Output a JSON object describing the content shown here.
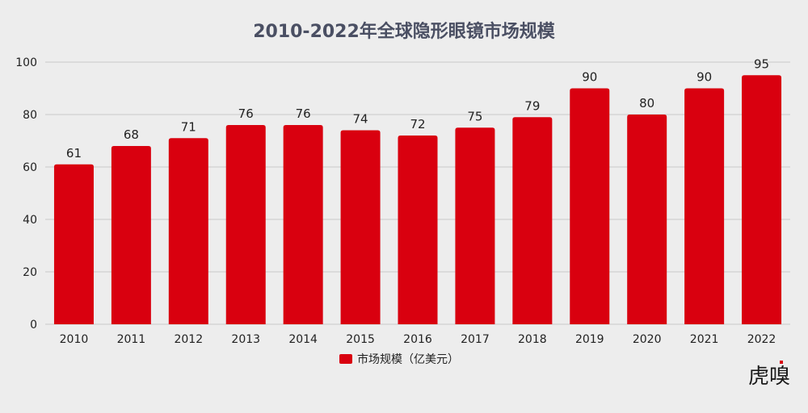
{
  "chart_data": {
    "type": "bar",
    "title": "2010-2022年全球隐形眼镜市场规模",
    "categories": [
      "2010",
      "2011",
      "2012",
      "2013",
      "2014",
      "2015",
      "2016",
      "2017",
      "2018",
      "2019",
      "2020",
      "2021",
      "2022"
    ],
    "series": [
      {
        "name": "市场规模（亿美元）",
        "values": [
          61,
          68,
          71,
          76,
          76,
          74,
          72,
          75,
          79,
          90,
          80,
          90,
          95
        ]
      }
    ],
    "ylim": [
      0,
      100
    ],
    "yticks": [
      0,
      20,
      40,
      60,
      80,
      100
    ],
    "xlabel": "",
    "ylabel": "",
    "grid": true,
    "legend": "bottom-center",
    "data_labels": true
  },
  "colors": {
    "bar": "#d9000f",
    "background": "#ededed",
    "title": "#4a4f63",
    "grid": "#c9c9c9",
    "text": "#222222"
  },
  "watermark": "虎嗅"
}
